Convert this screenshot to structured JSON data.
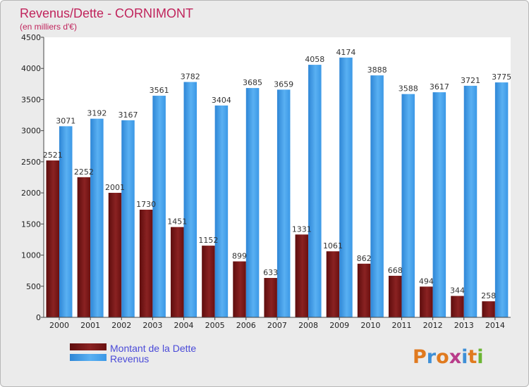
{
  "chart_data": {
    "type": "bar",
    "title": "Revenus/Dette - CORNIMONT",
    "subtitle": "(en milliers d'€)",
    "categories": [
      "2000",
      "2001",
      "2002",
      "2003",
      "2004",
      "2005",
      "2006",
      "2007",
      "2008",
      "2009",
      "2010",
      "2011",
      "2012",
      "2013",
      "2014"
    ],
    "series": [
      {
        "name": "Montant de la Dette",
        "color": "#7a1414",
        "values": [
          2521,
          2252,
          2001,
          1730,
          1451,
          1152,
          899,
          633,
          1331,
          1061,
          862,
          668,
          494,
          344,
          258
        ],
        "labels": [
          "2521",
          "2252",
          "2001",
          "1730",
          "1451",
          "1152",
          "899",
          "633",
          "1331",
          "1061",
          "862",
          "668",
          "494",
          "344",
          "258"
        ]
      },
      {
        "name": "Revenus",
        "color": "#3a9ae6",
        "values": [
          3071,
          3192,
          3167,
          3561,
          3782,
          3404,
          3685,
          3659,
          4058,
          4174,
          3888,
          3588,
          3617,
          3721,
          3775
        ],
        "labels": [
          "3071",
          "3192",
          "3167",
          "3561",
          "3782",
          "3404",
          "3685",
          "3659",
          "4058",
          "4174",
          "3888",
          "3588",
          "3617",
          "3721",
          "3775"
        ]
      }
    ],
    "yticks": [
      0,
      500,
      1000,
      1500,
      2000,
      2500,
      3000,
      3500,
      4000,
      4500
    ],
    "ylim": [
      0,
      4500
    ],
    "grid": false,
    "legend_position": "bottom-left"
  },
  "branding": {
    "logo_text": "Proxiti"
  }
}
